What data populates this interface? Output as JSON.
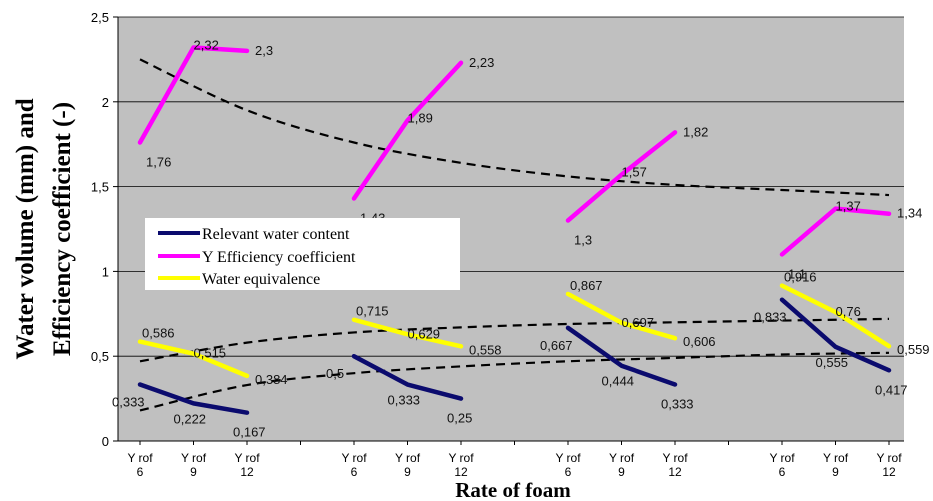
{
  "chart_data": {
    "type": "line",
    "title": "",
    "xlabel": "Rate of foam",
    "ylabel_line1": "Water volume (mm) and",
    "ylabel_line2": "Efficiency coefficient (-)",
    "ylim": [
      0,
      2.5
    ],
    "yticks": [
      "0",
      "0,5",
      "1",
      "1,5",
      "2",
      "2,5"
    ],
    "plot_background": "#c0c0c0",
    "grid": "horizontal",
    "legend_position": "left-middle",
    "categories": [
      [
        "Y rof",
        "6"
      ],
      [
        "Y rof",
        "9"
      ],
      [
        "Y rof",
        "12"
      ],
      null,
      [
        "Y rof",
        "6"
      ],
      [
        "Y rof",
        "9"
      ],
      [
        "Y rof",
        "12"
      ],
      null,
      [
        "Y rof",
        "6"
      ],
      [
        "Y rof",
        "9"
      ],
      [
        "Y rof",
        "12"
      ],
      null,
      [
        "Y rof",
        "6"
      ],
      [
        "Y rof",
        "9"
      ],
      [
        "Y rof",
        "12"
      ]
    ],
    "series": [
      {
        "name": "Relevant water content",
        "color": "#0b0b6e",
        "groups": [
          {
            "x": [
              0,
              1,
              2
            ],
            "values": [
              0.333,
              0.222,
              0.167
            ],
            "labels": [
              "0,333",
              "0,222",
              "0,167"
            ]
          },
          {
            "x": [
              4,
              5,
              6
            ],
            "values": [
              0.5,
              0.333,
              0.25
            ],
            "labels": [
              "0,5",
              "0,333",
              "0,25"
            ]
          },
          {
            "x": [
              8,
              9,
              10
            ],
            "values": [
              0.667,
              0.444,
              0.333
            ],
            "labels": [
              "0,667",
              "0,444",
              "0,333"
            ]
          },
          {
            "x": [
              12,
              13,
              14
            ],
            "values": [
              0.833,
              0.555,
              0.417
            ],
            "labels": [
              "0,833",
              "0,555",
              "0,417"
            ]
          }
        ]
      },
      {
        "name": "Y Efficiency coefficient",
        "color": "#ff00ff",
        "groups": [
          {
            "x": [
              0,
              1,
              2
            ],
            "values": [
              1.76,
              2.32,
              2.3
            ],
            "labels": [
              "1,76",
              "2,32",
              "2,3"
            ]
          },
          {
            "x": [
              4,
              5,
              6
            ],
            "values": [
              1.43,
              1.89,
              2.23
            ],
            "labels": [
              "1,43",
              "1,89",
              "2,23"
            ]
          },
          {
            "x": [
              8,
              9,
              10
            ],
            "values": [
              1.3,
              1.57,
              1.82
            ],
            "labels": [
              "1,3",
              "1,57",
              "1,82"
            ]
          },
          {
            "x": [
              12,
              13,
              14
            ],
            "values": [
              1.1,
              1.37,
              1.34
            ],
            "labels": [
              "1,1",
              "1,37",
              "1,34"
            ]
          }
        ]
      },
      {
        "name": "Water equivalence",
        "color": "#ffff00",
        "groups": [
          {
            "x": [
              0,
              1,
              2
            ],
            "values": [
              0.586,
              0.515,
              0.384
            ],
            "labels": [
              "0,586",
              "0,515",
              "0,384"
            ]
          },
          {
            "x": [
              4,
              5,
              6
            ],
            "values": [
              0.715,
              0.629,
              0.558
            ],
            "labels": [
              "0,715",
              "0,629",
              "0,558"
            ]
          },
          {
            "x": [
              8,
              9,
              10
            ],
            "values": [
              0.867,
              0.697,
              0.606
            ],
            "labels": [
              "0,867",
              "0,697",
              "0,606"
            ]
          },
          {
            "x": [
              12,
              13,
              14
            ],
            "values": [
              0.916,
              0.76,
              0.559
            ],
            "labels": [
              "0,916",
              "0,76",
              "0,559"
            ]
          }
        ]
      }
    ],
    "trendlines": [
      {
        "series": "Y Efficiency coefficient",
        "style": "dashed",
        "color": "#000000",
        "x": [
          0,
          2,
          4,
          6,
          8,
          10,
          12,
          14
        ],
        "values": [
          2.25,
          1.95,
          1.76,
          1.64,
          1.56,
          1.51,
          1.48,
          1.45
        ]
      },
      {
        "series": "Water equivalence",
        "style": "dashed",
        "color": "#000000",
        "x": [
          0,
          2,
          4,
          6,
          8,
          10,
          12,
          14
        ],
        "values": [
          0.47,
          0.58,
          0.64,
          0.67,
          0.69,
          0.7,
          0.71,
          0.72
        ]
      },
      {
        "series": "Relevant water content",
        "style": "dashed",
        "color": "#000000",
        "x": [
          0,
          2,
          4,
          6,
          8,
          10,
          12,
          14
        ],
        "values": [
          0.18,
          0.33,
          0.4,
          0.44,
          0.47,
          0.49,
          0.51,
          0.52
        ]
      }
    ]
  }
}
